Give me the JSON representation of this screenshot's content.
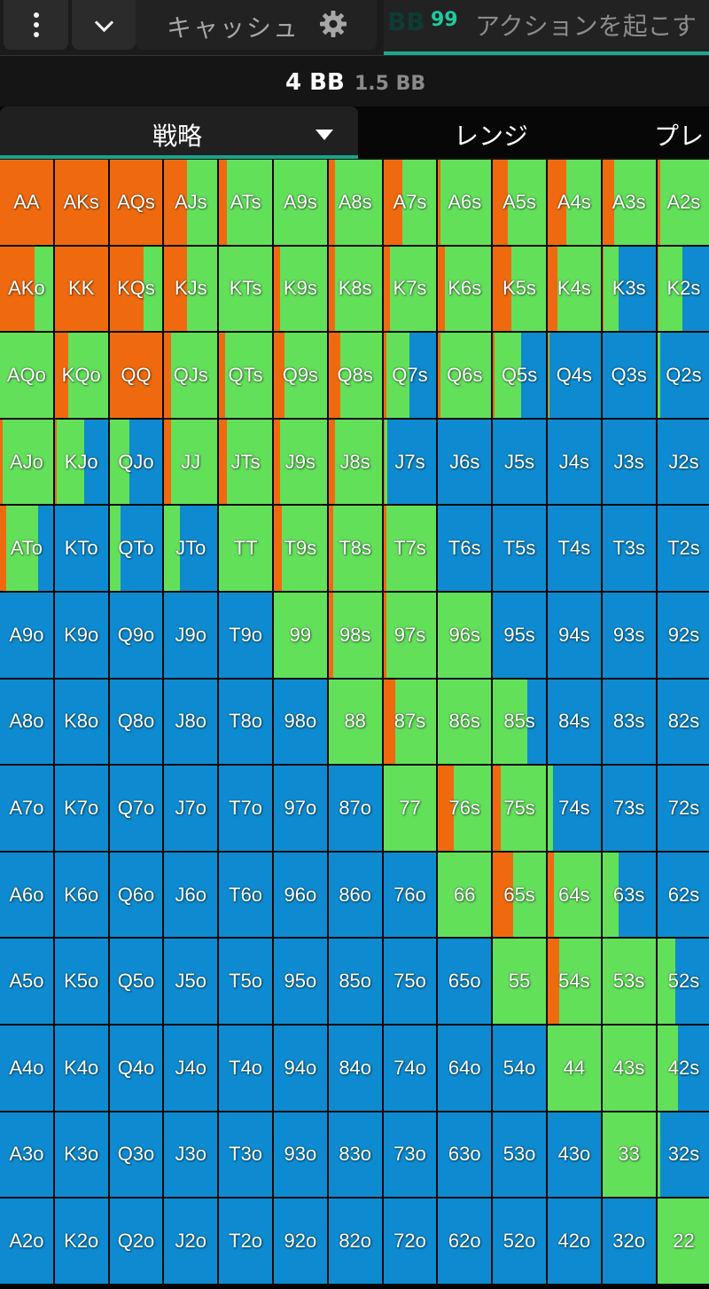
{
  "header": {
    "cash_label": "キャッシュ",
    "hint_bb": "BB",
    "hint_number": "99",
    "hint_text": "アクションを起こす"
  },
  "stack": {
    "main": "4 BB",
    "sub": "1.5 BB"
  },
  "tabs": {
    "strategy": "戦略",
    "range": "レンジ",
    "play": "プレ"
  },
  "colors": {
    "raise": "#ef6a0f",
    "call": "#62e05a",
    "fold": "#0e8ad0"
  },
  "grid": {
    "rows": [
      [
        "AA",
        "AKs",
        "AQs",
        "AJs",
        "ATs",
        "A9s",
        "A8s",
        "A7s",
        "A6s",
        "A5s",
        "A4s",
        "A3s",
        "A2s"
      ],
      [
        "AKo",
        "KK",
        "KQs",
        "KJs",
        "KTs",
        "K9s",
        "K8s",
        "K7s",
        "K6s",
        "K5s",
        "K4s",
        "K3s",
        "K2s"
      ],
      [
        "AQo",
        "KQo",
        "QQ",
        "QJs",
        "QTs",
        "Q9s",
        "Q8s",
        "Q7s",
        "Q6s",
        "Q5s",
        "Q4s",
        "Q3s",
        "Q2s"
      ],
      [
        "AJo",
        "KJo",
        "QJo",
        "JJ",
        "JTs",
        "J9s",
        "J8s",
        "J7s",
        "J6s",
        "J5s",
        "J4s",
        "J3s",
        "J2s"
      ],
      [
        "ATo",
        "KTo",
        "QTo",
        "JTo",
        "TT",
        "T9s",
        "T8s",
        "T7s",
        "T6s",
        "T5s",
        "T4s",
        "T3s",
        "T2s"
      ],
      [
        "A9o",
        "K9o",
        "Q9o",
        "J9o",
        "T9o",
        "99",
        "98s",
        "97s",
        "96s",
        "95s",
        "94s",
        "93s",
        "92s"
      ],
      [
        "A8o",
        "K8o",
        "Q8o",
        "J8o",
        "T8o",
        "98o",
        "88",
        "87s",
        "86s",
        "85s",
        "84s",
        "83s",
        "82s"
      ],
      [
        "A7o",
        "K7o",
        "Q7o",
        "J7o",
        "T7o",
        "97o",
        "87o",
        "77",
        "76s",
        "75s",
        "74s",
        "73s",
        "72s"
      ],
      [
        "A6o",
        "K6o",
        "Q6o",
        "J6o",
        "T6o",
        "96o",
        "86o",
        "76o",
        "66",
        "65s",
        "64s",
        "63s",
        "62s"
      ],
      [
        "A5o",
        "K5o",
        "Q5o",
        "J5o",
        "T5o",
        "95o",
        "85o",
        "75o",
        "65o",
        "55",
        "54s",
        "53s",
        "52s"
      ],
      [
        "A4o",
        "K4o",
        "Q4o",
        "J4o",
        "T4o",
        "94o",
        "84o",
        "74o",
        "64o",
        "54o",
        "44",
        "43s",
        "42s"
      ],
      [
        "A3o",
        "K3o",
        "Q3o",
        "J3o",
        "T3o",
        "93o",
        "83o",
        "73o",
        "63o",
        "53o",
        "43o",
        "33",
        "32s"
      ],
      [
        "A2o",
        "K2o",
        "Q2o",
        "J2o",
        "T2o",
        "92o",
        "82o",
        "72o",
        "62o",
        "52o",
        "42o",
        "32o",
        "22"
      ]
    ],
    "mix": [
      [
        [
          1,
          0,
          0
        ],
        [
          1,
          0,
          0
        ],
        [
          1,
          0,
          0
        ],
        [
          0.42,
          0.58,
          0
        ],
        [
          0.15,
          0.85,
          0
        ],
        [
          0,
          1,
          0
        ],
        [
          0.12,
          0.88,
          0
        ],
        [
          0.35,
          0.65,
          0
        ],
        [
          0.05,
          0.95,
          0
        ],
        [
          0.28,
          0.72,
          0
        ],
        [
          0.35,
          0.65,
          0
        ],
        [
          0.22,
          0.78,
          0
        ],
        [
          0.05,
          0.95,
          0
        ]
      ],
      [
        [
          0.65,
          0.35,
          0
        ],
        [
          1,
          0,
          0
        ],
        [
          0.65,
          0.35,
          0
        ],
        [
          0.42,
          0.58,
          0
        ],
        [
          0,
          1,
          0
        ],
        [
          0.12,
          0.88,
          0
        ],
        [
          0.12,
          0.88,
          0
        ],
        [
          0.12,
          0.88,
          0
        ],
        [
          0.12,
          0.88,
          0
        ],
        [
          0.35,
          0.65,
          0
        ],
        [
          0.18,
          0.82,
          0
        ],
        [
          0.02,
          0.28,
          0.7
        ],
        [
          0.02,
          0.45,
          0.53
        ]
      ],
      [
        [
          0,
          1,
          0
        ],
        [
          0.25,
          0.75,
          0
        ],
        [
          1,
          0,
          0
        ],
        [
          0.12,
          0.88,
          0
        ],
        [
          0.12,
          0.88,
          0
        ],
        [
          0.2,
          0.8,
          0
        ],
        [
          0.22,
          0.78,
          0
        ],
        [
          0.05,
          0.45,
          0.5
        ],
        [
          0.05,
          0.95,
          0
        ],
        [
          0.03,
          0.5,
          0.47
        ],
        [
          0.02,
          0.02,
          0.96
        ],
        [
          0,
          0,
          1
        ],
        [
          0,
          0.05,
          0.95
        ]
      ],
      [
        [
          0.05,
          0.95,
          0
        ],
        [
          0.04,
          0.52,
          0.44
        ],
        [
          0,
          0.38,
          0.62
        ],
        [
          0.12,
          0.88,
          0
        ],
        [
          0.15,
          0.85,
          0
        ],
        [
          0.12,
          0.88,
          0
        ],
        [
          0.12,
          0.88,
          0
        ],
        [
          0.02,
          0.05,
          0.93
        ],
        [
          0,
          0,
          1
        ],
        [
          0,
          0,
          1
        ],
        [
          0,
          0,
          1
        ],
        [
          0,
          0,
          1
        ],
        [
          0,
          0,
          1
        ]
      ],
      [
        [
          0.12,
          0.6,
          0.28
        ],
        [
          0,
          0,
          1
        ],
        [
          0,
          0.2,
          0.8
        ],
        [
          0,
          0.3,
          0.7
        ],
        [
          0,
          1,
          0
        ],
        [
          0.15,
          0.85,
          0
        ],
        [
          0.08,
          0.92,
          0
        ],
        [
          0.05,
          0.95,
          0
        ],
        [
          0,
          0,
          1
        ],
        [
          0,
          0,
          1
        ],
        [
          0,
          0,
          1
        ],
        [
          0,
          0,
          1
        ],
        [
          0,
          0,
          1
        ]
      ],
      [
        [
          0,
          0,
          1
        ],
        [
          0,
          0,
          1
        ],
        [
          0,
          0,
          1
        ],
        [
          0,
          0,
          1
        ],
        [
          0,
          0,
          1
        ],
        [
          0,
          1,
          0
        ],
        [
          0.08,
          0.92,
          0
        ],
        [
          0.05,
          0.95,
          0
        ],
        [
          0,
          1,
          0
        ],
        [
          0,
          0,
          1
        ],
        [
          0,
          0,
          1
        ],
        [
          0,
          0,
          1
        ],
        [
          0,
          0,
          1
        ]
      ],
      [
        [
          0,
          0,
          1
        ],
        [
          0,
          0,
          1
        ],
        [
          0,
          0,
          1
        ],
        [
          0,
          0,
          1
        ],
        [
          0,
          0,
          1
        ],
        [
          0,
          0,
          1
        ],
        [
          0,
          1,
          0
        ],
        [
          0.22,
          0.78,
          0
        ],
        [
          0,
          1,
          0
        ],
        [
          0,
          0.65,
          0.35
        ],
        [
          0,
          0,
          1
        ],
        [
          0,
          0,
          1
        ],
        [
          0,
          0,
          1
        ]
      ],
      [
        [
          0,
          0,
          1
        ],
        [
          0,
          0,
          1
        ],
        [
          0,
          0,
          1
        ],
        [
          0,
          0,
          1
        ],
        [
          0,
          0,
          1
        ],
        [
          0,
          0,
          1
        ],
        [
          0,
          0,
          1
        ],
        [
          0,
          1,
          0
        ],
        [
          0.3,
          0.7,
          0
        ],
        [
          0.15,
          0.85,
          0
        ],
        [
          0,
          0.1,
          0.9
        ],
        [
          0,
          0,
          1
        ],
        [
          0,
          0,
          1
        ]
      ],
      [
        [
          0,
          0,
          1
        ],
        [
          0,
          0,
          1
        ],
        [
          0,
          0,
          1
        ],
        [
          0,
          0,
          1
        ],
        [
          0,
          0,
          1
        ],
        [
          0,
          0,
          1
        ],
        [
          0,
          0,
          1
        ],
        [
          0,
          0,
          1
        ],
        [
          0,
          1,
          0
        ],
        [
          0.38,
          0.62,
          0
        ],
        [
          0.12,
          0.88,
          0
        ],
        [
          0,
          0.3,
          0.7
        ],
        [
          0,
          0,
          1
        ]
      ],
      [
        [
          0,
          0,
          1
        ],
        [
          0,
          0,
          1
        ],
        [
          0,
          0,
          1
        ],
        [
          0,
          0,
          1
        ],
        [
          0,
          0,
          1
        ],
        [
          0,
          0,
          1
        ],
        [
          0,
          0,
          1
        ],
        [
          0,
          0,
          1
        ],
        [
          0,
          0,
          1
        ],
        [
          0,
          1,
          0
        ],
        [
          0.22,
          0.78,
          0
        ],
        [
          0,
          1,
          0
        ],
        [
          0,
          0.35,
          0.65
        ]
      ],
      [
        [
          0,
          0,
          1
        ],
        [
          0,
          0,
          1
        ],
        [
          0,
          0,
          1
        ],
        [
          0,
          0,
          1
        ],
        [
          0,
          0,
          1
        ],
        [
          0,
          0,
          1
        ],
        [
          0,
          0,
          1
        ],
        [
          0,
          0,
          1
        ],
        [
          0,
          0,
          1
        ],
        [
          0,
          0,
          1
        ],
        [
          0,
          1,
          0
        ],
        [
          0,
          1,
          0
        ],
        [
          0,
          0.4,
          0.6
        ]
      ],
      [
        [
          0,
          0,
          1
        ],
        [
          0,
          0,
          1
        ],
        [
          0,
          0,
          1
        ],
        [
          0,
          0,
          1
        ],
        [
          0,
          0,
          1
        ],
        [
          0,
          0,
          1
        ],
        [
          0,
          0,
          1
        ],
        [
          0,
          0,
          1
        ],
        [
          0,
          0,
          1
        ],
        [
          0,
          0,
          1
        ],
        [
          0,
          0,
          1
        ],
        [
          0,
          1,
          0
        ],
        [
          0,
          0.05,
          0.95
        ]
      ],
      [
        [
          0,
          0,
          1
        ],
        [
          0,
          0,
          1
        ],
        [
          0,
          0,
          1
        ],
        [
          0,
          0,
          1
        ],
        [
          0,
          0,
          1
        ],
        [
          0,
          0,
          1
        ],
        [
          0,
          0,
          1
        ],
        [
          0,
          0,
          1
        ],
        [
          0,
          0,
          1
        ],
        [
          0,
          0,
          1
        ],
        [
          0,
          0,
          1
        ],
        [
          0,
          0,
          1
        ],
        [
          0,
          1,
          0
        ]
      ]
    ]
  }
}
